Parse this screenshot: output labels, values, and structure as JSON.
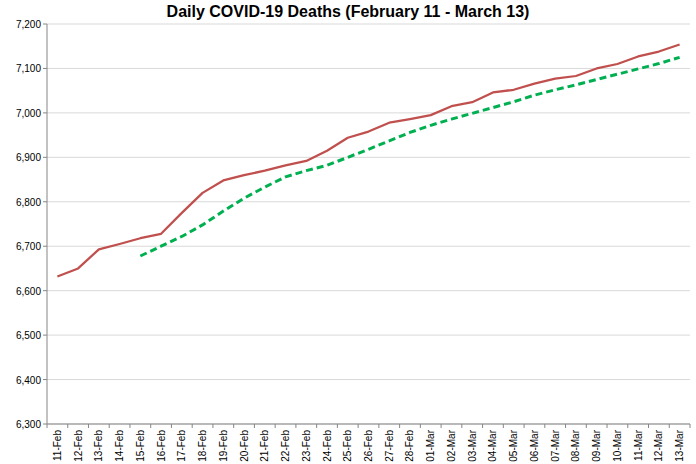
{
  "chart_data": {
    "type": "line",
    "title": "Daily COVID-19 Deaths (February 11 - March 13)",
    "categories": [
      "11-Feb",
      "12-Feb",
      "13-Feb",
      "14-Feb",
      "15-Feb",
      "16-Feb",
      "17-Feb",
      "18-Feb",
      "19-Feb",
      "20-Feb",
      "21-Feb",
      "22-Feb",
      "23-Feb",
      "24-Feb",
      "25-Feb",
      "26-Feb",
      "27-Feb",
      "28-Feb",
      "01-Mar",
      "02-Mar",
      "03-Mar",
      "04-Mar",
      "05-Mar",
      "06-Mar",
      "07-Mar",
      "08-Mar",
      "09-Mar",
      "10-Mar",
      "11-Mar",
      "12-Mar",
      "13-Mar"
    ],
    "series": [
      {
        "color": "#c0504d",
        "line_style": "solid",
        "values": [
          6632,
          6650,
          6693,
          6705,
          6718,
          6728,
          6775,
          6820,
          6848,
          6860,
          6870,
          6882,
          6892,
          6915,
          6944,
          6958,
          6978,
          6986,
          6995,
          7015,
          7024,
          7046,
          7052,
          7066,
          7077,
          7083,
          7100,
          7110,
          7127,
          7138,
          7154
        ]
      },
      {
        "color": "#00b050",
        "line_style": "dashed",
        "values": [
          null,
          null,
          null,
          null,
          6678,
          6700,
          6722,
          6748,
          6779,
          6808,
          6833,
          6856,
          6870,
          6882,
          6900,
          6918,
          6937,
          6956,
          6972,
          6986,
          6999,
          7012,
          7025,
          7040,
          7052,
          7063,
          7075,
          7087,
          7099,
          7111,
          7125
        ]
      }
    ],
    "ylim": [
      6300,
      7200
    ],
    "yticks": [
      {
        "value": 6300,
        "label": "6,300"
      },
      {
        "value": 6400,
        "label": "6,400"
      },
      {
        "value": 6500,
        "label": "6,500"
      },
      {
        "value": 6600,
        "label": "6,600"
      },
      {
        "value": 6700,
        "label": "6,700"
      },
      {
        "value": 6800,
        "label": "6,800"
      },
      {
        "value": 6900,
        "label": "6,900"
      },
      {
        "value": 7000,
        "label": "7,000"
      },
      {
        "value": 7100,
        "label": "7,100"
      },
      {
        "value": 7200,
        "label": "7,200"
      }
    ],
    "grid": true
  }
}
